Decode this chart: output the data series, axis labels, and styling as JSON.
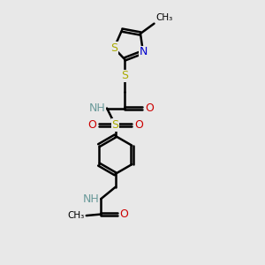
{
  "bg_color": "#e8e8e8",
  "bond_color": "#000000",
  "bond_width": 1.8,
  "atom_colors": {
    "S": "#aaaa00",
    "N": "#0000cc",
    "O": "#cc0000",
    "H": "#6a9a9a",
    "C": "#000000"
  },
  "font_size": 9.0,
  "xlim": [
    3.0,
    8.5
  ],
  "ylim": [
    0.5,
    10.5
  ]
}
